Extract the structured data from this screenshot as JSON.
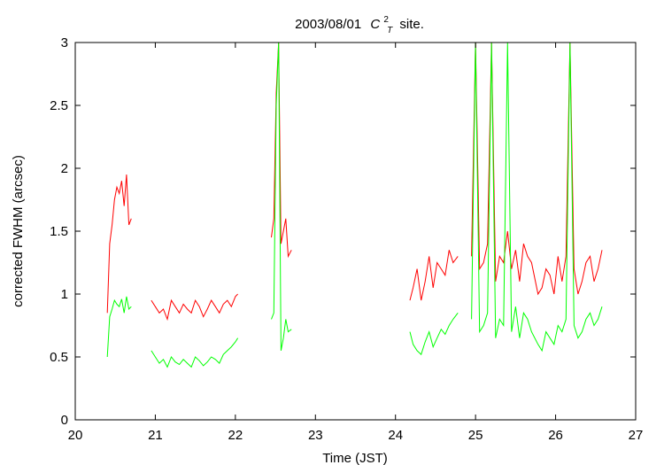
{
  "chart_data": {
    "type": "line",
    "title": "2003/08/01",
    "title_symbol_base": "C",
    "title_symbol_sup": "2",
    "title_symbol_sub": "T",
    "title_suffix": "site.",
    "xlabel": "Time (JST)",
    "ylabel": "corrected FWHM (arcsec)",
    "xlim": [
      20,
      27
    ],
    "ylim": [
      0,
      3
    ],
    "xticks": [
      20,
      21,
      22,
      23,
      24,
      25,
      26,
      27
    ],
    "yticks": [
      0,
      0.5,
      1,
      1.5,
      2,
      2.5,
      3
    ],
    "xtick_labels": [
      "20",
      "21",
      "22",
      "23",
      "24",
      "25",
      "26",
      "27"
    ],
    "ytick_labels": [
      "0",
      "0.5",
      "1",
      "1.5",
      "2",
      "2.5",
      "3"
    ],
    "grid": false,
    "series": [
      {
        "color": "#ff0000",
        "x": [
          20.4,
          20.43,
          20.46,
          20.49,
          20.52,
          20.55,
          20.58,
          20.61,
          20.64,
          20.67,
          20.7,
          20.95,
          21.0,
          21.05,
          21.1,
          21.15,
          21.2,
          21.25,
          21.3,
          21.35,
          21.4,
          21.45,
          21.5,
          21.55,
          21.6,
          21.65,
          21.7,
          21.75,
          21.8,
          21.85,
          21.9,
          21.95,
          22.0,
          22.03,
          22.45,
          22.48,
          22.51,
          22.54,
          22.57,
          22.6,
          22.63,
          22.66,
          22.7,
          24.18,
          24.22,
          24.27,
          24.32,
          24.37,
          24.42,
          24.47,
          24.52,
          24.57,
          24.62,
          24.67,
          24.72,
          24.78,
          24.95,
          25.0,
          25.05,
          25.1,
          25.15,
          25.2,
          25.25,
          25.3,
          25.35,
          25.4,
          25.45,
          25.5,
          25.55,
          25.6,
          25.65,
          25.7,
          25.78,
          25.83,
          25.88,
          25.93,
          25.98,
          26.03,
          26.08,
          26.13,
          26.18,
          26.23,
          26.28,
          26.33,
          26.38,
          26.43,
          26.48,
          26.53,
          26.58
        ],
        "y": [
          0.85,
          1.4,
          1.55,
          1.75,
          1.85,
          1.8,
          1.9,
          1.7,
          1.95,
          1.55,
          1.6,
          0.95,
          0.9,
          0.85,
          0.88,
          0.8,
          0.95,
          0.9,
          0.85,
          0.92,
          0.88,
          0.85,
          0.95,
          0.9,
          0.82,
          0.88,
          0.95,
          0.9,
          0.85,
          0.92,
          0.95,
          0.9,
          0.98,
          1.0,
          1.45,
          1.6,
          2.6,
          3.0,
          1.4,
          1.5,
          1.6,
          1.3,
          1.35,
          0.95,
          1.05,
          1.2,
          0.95,
          1.1,
          1.3,
          1.05,
          1.25,
          1.2,
          1.15,
          1.35,
          1.25,
          1.3,
          1.3,
          3.0,
          1.2,
          1.25,
          1.4,
          3.0,
          1.1,
          1.3,
          1.25,
          1.5,
          1.2,
          1.35,
          1.1,
          1.4,
          1.3,
          1.25,
          1.0,
          1.05,
          1.2,
          1.15,
          1.0,
          1.3,
          1.1,
          1.3,
          3.0,
          1.2,
          1.0,
          1.1,
          1.25,
          1.3,
          1.1,
          1.2,
          1.35
        ]
      },
      {
        "color": "#00ff00",
        "x": [
          20.4,
          20.43,
          20.46,
          20.49,
          20.52,
          20.55,
          20.58,
          20.61,
          20.64,
          20.67,
          20.7,
          20.95,
          21.0,
          21.05,
          21.1,
          21.15,
          21.2,
          21.25,
          21.3,
          21.35,
          21.4,
          21.45,
          21.5,
          21.55,
          21.6,
          21.65,
          21.7,
          21.75,
          21.8,
          21.85,
          21.9,
          21.95,
          22.0,
          22.03,
          22.45,
          22.48,
          22.51,
          22.54,
          22.57,
          22.6,
          22.63,
          22.66,
          22.7,
          24.18,
          24.22,
          24.27,
          24.32,
          24.37,
          24.42,
          24.47,
          24.52,
          24.57,
          24.62,
          24.67,
          24.72,
          24.78,
          24.95,
          25.0,
          25.05,
          25.1,
          25.15,
          25.2,
          25.25,
          25.3,
          25.35,
          25.4,
          25.45,
          25.5,
          25.55,
          25.6,
          25.65,
          25.7,
          25.78,
          25.83,
          25.88,
          25.93,
          25.98,
          26.03,
          26.08,
          26.13,
          26.18,
          26.23,
          26.28,
          26.33,
          26.38,
          26.43,
          26.48,
          26.53,
          26.58
        ],
        "y": [
          0.5,
          0.82,
          0.88,
          0.95,
          0.92,
          0.9,
          0.96,
          0.85,
          0.98,
          0.88,
          0.9,
          0.55,
          0.5,
          0.45,
          0.48,
          0.42,
          0.5,
          0.46,
          0.44,
          0.48,
          0.45,
          0.42,
          0.5,
          0.47,
          0.43,
          0.46,
          0.5,
          0.48,
          0.45,
          0.52,
          0.55,
          0.58,
          0.62,
          0.65,
          0.8,
          0.85,
          2.5,
          3.0,
          0.55,
          0.65,
          0.8,
          0.7,
          0.72,
          0.7,
          0.6,
          0.55,
          0.52,
          0.62,
          0.7,
          0.58,
          0.65,
          0.72,
          0.68,
          0.75,
          0.8,
          0.85,
          0.8,
          3.0,
          0.7,
          0.75,
          0.85,
          3.0,
          0.65,
          0.8,
          0.75,
          3.0,
          0.7,
          0.9,
          0.65,
          0.85,
          0.8,
          0.7,
          0.6,
          0.55,
          0.7,
          0.65,
          0.6,
          0.75,
          0.7,
          0.8,
          3.0,
          0.75,
          0.65,
          0.7,
          0.8,
          0.85,
          0.75,
          0.8,
          0.9
        ]
      }
    ]
  }
}
